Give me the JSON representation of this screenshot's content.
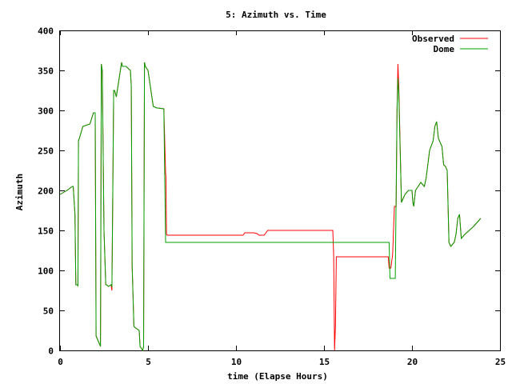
{
  "chart_data": {
    "type": "line",
    "title": "5: Azimuth vs. Time",
    "xlabel": "time (Elapse Hours)",
    "ylabel": "Azimuth",
    "xlim": [
      0,
      25
    ],
    "ylim": [
      0,
      400
    ],
    "xticks": [
      0,
      5,
      10,
      15,
      20,
      25
    ],
    "yticks": [
      0,
      50,
      100,
      150,
      200,
      250,
      300,
      350,
      400
    ],
    "legend_position": "top-right",
    "grid": false,
    "series": [
      {
        "name": "Observed",
        "color": "#ff0000",
        "x": [
          0,
          0.4,
          0.7,
          0.75,
          0.85,
          0.9,
          1.0,
          1.02,
          1.05,
          1.1,
          1.3,
          1.7,
          1.9,
          2.0,
          2.05,
          2.3,
          2.35,
          2.4,
          2.5,
          2.6,
          2.65,
          2.75,
          2.9,
          2.95,
          3.0,
          3.05,
          3.1,
          3.2,
          3.5,
          3.55,
          3.75,
          4.0,
          4.05,
          4.1,
          4.2,
          4.3,
          4.5,
          4.55,
          4.7,
          4.75,
          4.8,
          4.85,
          5.0,
          5.3,
          5.5,
          5.55,
          5.9,
          6.0,
          6.02,
          6.05,
          6.1,
          8,
          10.4,
          10.5,
          11,
          11.2,
          11.3,
          11.6,
          11.8,
          12,
          12.5,
          15.5,
          15.55,
          15.6,
          15.65,
          15.7,
          15.8,
          18.6,
          18.65,
          18.7,
          18.8,
          18.9,
          19.0,
          19.1,
          19.15,
          19.2,
          19.25,
          19.4,
          19.5,
          19.6,
          19.8,
          20.0,
          20.05,
          20.1,
          20.2,
          20.5,
          20.7,
          20.8,
          21.0,
          21.2,
          21.3,
          21.4,
          21.5,
          21.7,
          21.8,
          21.9,
          22.0,
          22.1,
          22.2,
          22.4,
          22.5,
          22.6,
          22.7,
          22.8,
          23.0,
          23.5,
          23.9
        ],
        "y": [
          195,
          200,
          205,
          205,
          170,
          82,
          82,
          80,
          262,
          265,
          280,
          283,
          297,
          297,
          18,
          5,
          358,
          350,
          150,
          82,
          82,
          80,
          82,
          75,
          200,
          325,
          325,
          317,
          360,
          355,
          355,
          350,
          330,
          105,
          30,
          28,
          25,
          5,
          0,
          5,
          360,
          355,
          350,
          305,
          303,
          303,
          302,
          222,
          217,
          145,
          144,
          144,
          144,
          147,
          147,
          146,
          144,
          144,
          150,
          150,
          150,
          150,
          118,
          0,
          30,
          117,
          117,
          117,
          117,
          103,
          103,
          120,
          180,
          180,
          300,
          358,
          330,
          185,
          190,
          195,
          200,
          200,
          185,
          180,
          200,
          210,
          205,
          215,
          250,
          262,
          280,
          286,
          265,
          255,
          232,
          230,
          225,
          135,
          130,
          135,
          145,
          165,
          170,
          140,
          145,
          155,
          165
        ]
      },
      {
        "name": "Dome",
        "color": "#00a000",
        "x": [
          0,
          0.4,
          0.7,
          0.75,
          0.85,
          0.9,
          1.0,
          1.02,
          1.05,
          1.1,
          1.3,
          1.7,
          1.9,
          2.0,
          2.05,
          2.3,
          2.35,
          2.4,
          2.5,
          2.6,
          2.65,
          2.75,
          2.9,
          2.95,
          3.0,
          3.05,
          3.1,
          3.2,
          3.5,
          3.55,
          3.75,
          4.0,
          4.05,
          4.1,
          4.2,
          4.3,
          4.5,
          4.55,
          4.7,
          4.75,
          4.8,
          4.85,
          5.0,
          5.3,
          5.5,
          5.55,
          5.9,
          6.0,
          6.05,
          6.1,
          18.7,
          18.75,
          18.9,
          19.05,
          19.15,
          19.2,
          19.25,
          19.4,
          19.5,
          19.6,
          19.8,
          20.0,
          20.05,
          20.1,
          20.2,
          20.5,
          20.7,
          20.8,
          21.0,
          21.2,
          21.3,
          21.4,
          21.5,
          21.7,
          21.8,
          21.9,
          22.0,
          22.1,
          22.2,
          22.4,
          22.5,
          22.6,
          22.7,
          22.8,
          23.0,
          23.5,
          23.9
        ],
        "y": [
          195,
          200,
          205,
          205,
          170,
          82,
          82,
          80,
          262,
          265,
          280,
          283,
          297,
          297,
          18,
          5,
          358,
          350,
          150,
          82,
          82,
          80,
          82,
          80,
          200,
          325,
          325,
          317,
          360,
          355,
          355,
          350,
          330,
          105,
          30,
          28,
          25,
          5,
          0,
          5,
          360,
          355,
          350,
          305,
          303,
          303,
          302,
          135,
          135,
          135,
          135,
          90,
          90,
          90,
          300,
          340,
          320,
          185,
          190,
          195,
          200,
          200,
          185,
          180,
          200,
          210,
          205,
          215,
          250,
          262,
          280,
          286,
          265,
          255,
          232,
          230,
          225,
          135,
          130,
          135,
          145,
          165,
          170,
          140,
          145,
          155,
          165
        ]
      }
    ]
  }
}
